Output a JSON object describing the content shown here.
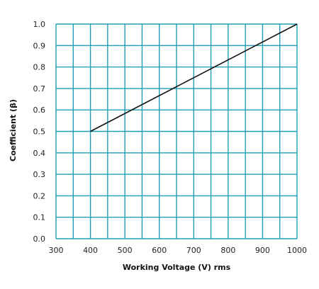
{
  "chart_data": {
    "type": "line",
    "title": "",
    "xlabel": "Working Voltage (V) rms",
    "ylabel": "Coefficient (β)",
    "xlim": [
      300,
      1000
    ],
    "ylim": [
      0.0,
      1.0
    ],
    "x_ticks": [
      "300",
      "400",
      "500",
      "600",
      "700",
      "800",
      "900",
      "1000"
    ],
    "y_ticks": [
      "0.0",
      "0.1",
      "0.2",
      "0.3",
      "0.4",
      "0.5",
      "0.6",
      "0.7",
      "0.8",
      "0.9",
      "1.0"
    ],
    "x_gridlines": [
      300,
      350,
      400,
      450,
      500,
      550,
      600,
      650,
      700,
      750,
      800,
      850,
      900,
      950,
      1000
    ],
    "y_gridlines": [
      0.0,
      0.1,
      0.2,
      0.3,
      0.4,
      0.5,
      0.6,
      0.7,
      0.8,
      0.9,
      1.0
    ],
    "grid": true,
    "series": [
      {
        "x": [
          400,
          1000
        ],
        "y": [
          0.5,
          1.0
        ]
      }
    ],
    "colors": {
      "grid": "#1f9fb4",
      "line": "#111111"
    }
  }
}
